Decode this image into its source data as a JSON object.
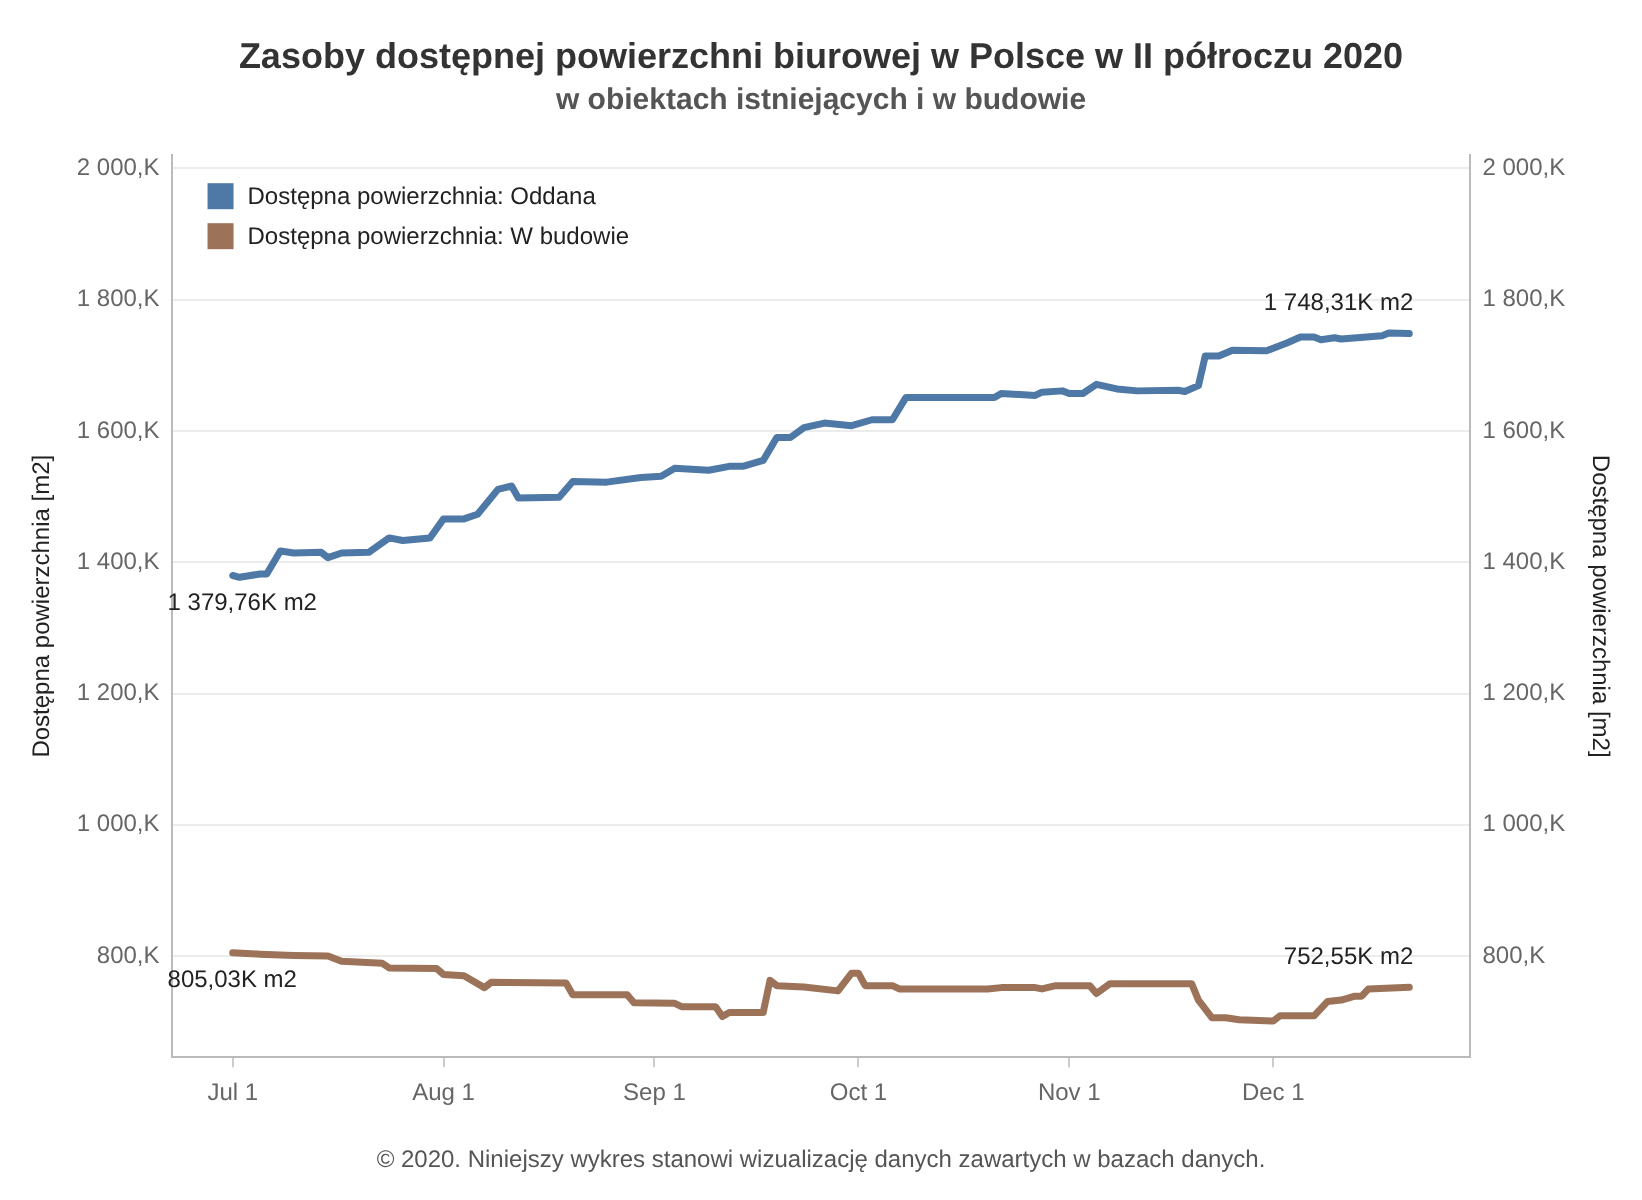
{
  "chart_data": {
    "type": "line",
    "title": "Zasoby dostępnej powierzchni biurowej w Polsce w II półroczu 2020",
    "subtitle": "w obiektach istniejących i w budowie",
    "ylabel": "Dostępna powierzchnia [m2]",
    "y2label": "Dostępna powierzchnia [m2]",
    "xlim": [
      "2020-06-22",
      "2020-12-30"
    ],
    "xticks": [
      {
        "value": "2020-07-01",
        "label": "Jul 1"
      },
      {
        "value": "2020-08-01",
        "label": "Aug 1"
      },
      {
        "value": "2020-09-01",
        "label": "Sep 1"
      },
      {
        "value": "2020-10-01",
        "label": "Oct 1"
      },
      {
        "value": "2020-11-01",
        "label": "Nov 1"
      },
      {
        "value": "2020-12-01",
        "label": "Dec 1"
      }
    ],
    "ylim": [
      646,
      2020
    ],
    "yticks": [
      {
        "value": 800,
        "label": "800,K"
      },
      {
        "value": 1000,
        "label": "1 000,K"
      },
      {
        "value": 1200,
        "label": "1 200,K"
      },
      {
        "value": 1400,
        "label": "1 400,K"
      },
      {
        "value": 1600,
        "label": "1 600,K"
      },
      {
        "value": 1800,
        "label": "1 800,K"
      },
      {
        "value": 2000,
        "label": "2 000,K"
      }
    ],
    "y2lim": [
      646,
      2020
    ],
    "y2ticks": [
      {
        "value": 800,
        "label": "800,K"
      },
      {
        "value": 1000,
        "label": "1 000,K"
      },
      {
        "value": 1200,
        "label": "1 200,K"
      },
      {
        "value": 1400,
        "label": "1 400,K"
      },
      {
        "value": 1600,
        "label": "1 600,K"
      },
      {
        "value": 1800,
        "label": "1 800,K"
      },
      {
        "value": 2000,
        "label": "2 000,K"
      }
    ],
    "grid": "y",
    "legend": "top left",
    "marker": "none",
    "series": [
      {
        "name": "Dostępna powierzchnia: Oddana",
        "color": "#4e79a7",
        "x": [
          "2020-07-01",
          "2020-07-02",
          "2020-07-05",
          "2020-07-06",
          "2020-07-08",
          "2020-07-10",
          "2020-07-14",
          "2020-07-15",
          "2020-07-17",
          "2020-07-21",
          "2020-07-24",
          "2020-07-26",
          "2020-07-30",
          "2020-08-01",
          "2020-08-04",
          "2020-08-06",
          "2020-08-09",
          "2020-08-11",
          "2020-08-12",
          "2020-08-18",
          "2020-08-20",
          "2020-08-25",
          "2020-08-30",
          "2020-09-02",
          "2020-09-04",
          "2020-09-09",
          "2020-09-12",
          "2020-09-14",
          "2020-09-17",
          "2020-09-19",
          "2020-09-21",
          "2020-09-23",
          "2020-09-26",
          "2020-09-30",
          "2020-10-03",
          "2020-10-06",
          "2020-10-08",
          "2020-10-21",
          "2020-10-22",
          "2020-10-27",
          "2020-10-28",
          "2020-10-31",
          "2020-11-01",
          "2020-11-03",
          "2020-11-05",
          "2020-11-08",
          "2020-11-11",
          "2020-11-17",
          "2020-11-18",
          "2020-11-20",
          "2020-11-21",
          "2020-11-23",
          "2020-11-25",
          "2020-11-30",
          "2020-12-03",
          "2020-12-05",
          "2020-12-07",
          "2020-12-08",
          "2020-12-10",
          "2020-12-11",
          "2020-12-17",
          "2020-12-18",
          "2020-12-21"
        ],
        "values": [
          1379.76,
          1377,
          1382,
          1382,
          1417,
          1414,
          1415,
          1407,
          1414,
          1415,
          1437,
          1433,
          1437,
          1466,
          1466,
          1473,
          1511,
          1516,
          1498,
          1499,
          1523,
          1522,
          1529,
          1531,
          1543,
          1540,
          1546,
          1546,
          1555,
          1590,
          1590,
          1605,
          1612,
          1608,
          1617,
          1617,
          1651,
          1651,
          1657,
          1654,
          1659,
          1661,
          1657,
          1657,
          1671,
          1664,
          1661,
          1662,
          1660,
          1669,
          1714,
          1714,
          1723,
          1722,
          1734,
          1743,
          1743,
          1739,
          1742,
          1740,
          1745,
          1749,
          1748.31
        ]
      },
      {
        "name": "Dostępna powierzchnia: W budowie",
        "color": "#9c7359",
        "x": [
          "2020-07-01",
          "2020-07-05",
          "2020-07-10",
          "2020-07-15",
          "2020-07-17",
          "2020-07-23",
          "2020-07-24",
          "2020-07-31",
          "2020-08-01",
          "2020-08-04",
          "2020-08-07",
          "2020-08-08",
          "2020-08-19",
          "2020-08-20",
          "2020-08-28",
          "2020-08-29",
          "2020-09-04",
          "2020-09-05",
          "2020-09-10",
          "2020-09-11",
          "2020-09-12",
          "2020-09-17",
          "2020-09-18",
          "2020-09-19",
          "2020-09-23",
          "2020-09-28",
          "2020-09-30",
          "2020-10-01",
          "2020-10-02",
          "2020-10-06",
          "2020-10-07",
          "2020-10-20",
          "2020-10-22",
          "2020-10-27",
          "2020-10-28",
          "2020-10-30",
          "2020-11-04",
          "2020-11-05",
          "2020-11-07",
          "2020-11-19",
          "2020-11-20",
          "2020-11-22",
          "2020-11-24",
          "2020-11-26",
          "2020-12-01",
          "2020-12-02",
          "2020-12-07",
          "2020-12-09",
          "2020-12-11",
          "2020-12-13",
          "2020-12-14",
          "2020-12-15",
          "2020-12-21"
        ],
        "values": [
          805.03,
          803,
          801,
          800,
          792,
          789,
          782,
          781,
          772,
          770,
          752,
          760,
          759,
          741,
          741,
          729,
          728,
          723,
          723,
          708,
          714,
          714,
          763,
          755,
          753,
          747,
          774,
          774,
          755,
          755,
          750,
          750,
          752,
          752,
          750,
          755,
          755,
          743,
          758,
          758,
          733,
          706,
          706,
          703,
          701,
          709,
          709,
          731,
          733,
          739,
          739,
          750,
          752.55
        ]
      }
    ],
    "annotations": [
      {
        "text": "1 379,76K m2",
        "x": "2020-07-01",
        "y": 1379.76
      },
      {
        "text": "1 748,31K m2",
        "x": "2020-12-21",
        "y": 1748.31
      },
      {
        "text": "805,03K m2",
        "x": "2020-07-01",
        "y": 805.03
      },
      {
        "text": "752,55K m2",
        "x": "2020-12-21",
        "y": 752.55
      },
      "© 2020. Niniejszy wykres stanowi wizualizację danych zawartych w bazach danych."
    ]
  }
}
